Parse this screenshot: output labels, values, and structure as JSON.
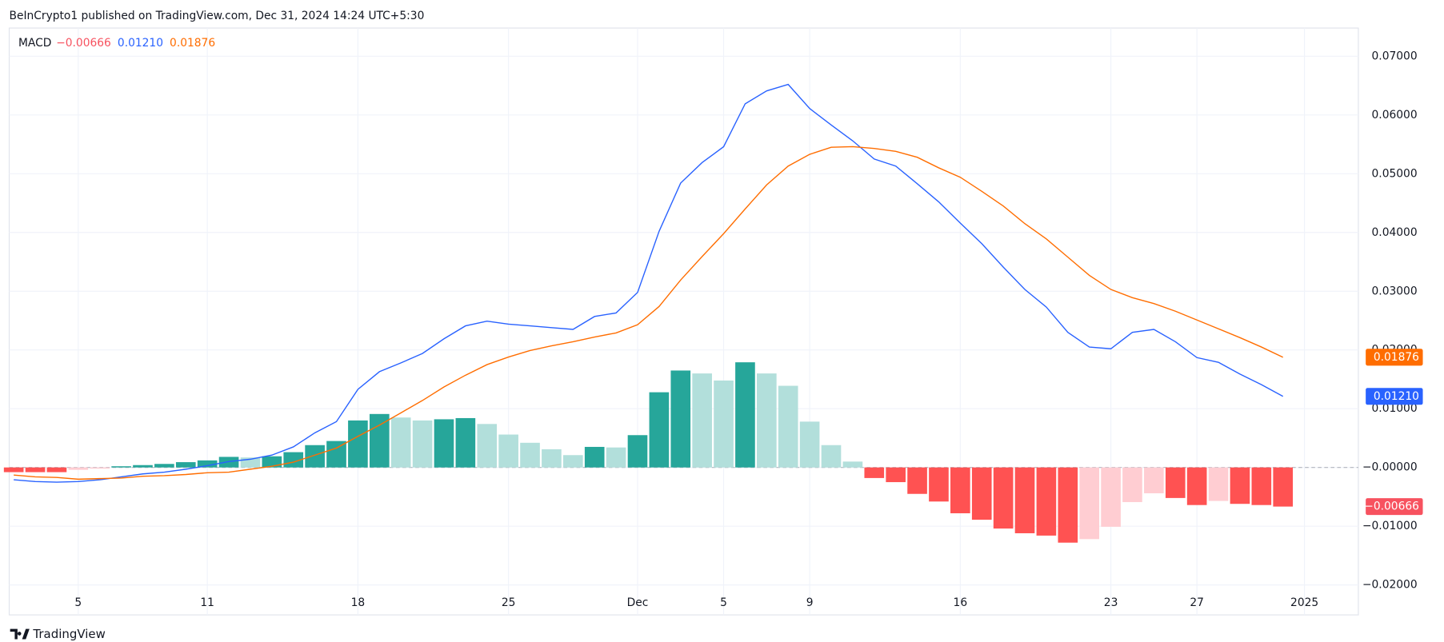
{
  "header": "BeInCrypto1 published on TradingView.com, Dec 31, 2024 14:24 UTC+5:30",
  "footer_brand": "TradingView",
  "chart_data": {
    "type": "macd",
    "indicator": "MACD",
    "categories": [
      null,
      null,
      null,
      "5",
      null,
      null,
      null,
      null,
      null,
      "11",
      null,
      null,
      null,
      null,
      null,
      null,
      "18",
      null,
      null,
      null,
      null,
      null,
      null,
      "25",
      null,
      null,
      null,
      null,
      null,
      "Dec",
      null,
      null,
      null,
      "5",
      null,
      null,
      null,
      "9",
      null,
      null,
      null,
      null,
      null,
      null,
      "16",
      null,
      null,
      null,
      null,
      null,
      null,
      "23",
      null,
      null,
      null,
      "27",
      null,
      null,
      null,
      null,
      "2025"
    ],
    "ylim": [
      -0.0251,
      0.0748
    ],
    "yticks": [
      {
        "value": 0.07,
        "label": "0.07000"
      },
      {
        "value": 0.06,
        "label": "0.06000"
      },
      {
        "value": 0.05,
        "label": "0.05000"
      },
      {
        "value": 0.04,
        "label": "0.04000"
      },
      {
        "value": 0.03,
        "label": "0.03000"
      },
      {
        "value": 0.02,
        "label": "0.02000"
      },
      {
        "value": 0.01,
        "label": "0.01000"
      },
      {
        "value": 0,
        "label": "−0.00000"
      },
      {
        "value": -0.01,
        "label": "−0.01000"
      },
      {
        "value": -0.02,
        "label": "−0.02000"
      }
    ],
    "grid": true,
    "series": [
      {
        "kind": "histogram",
        "color": "#f7525f",
        "last_value": {
          "value": -0.00666,
          "label": "−0.00666"
        },
        "values": [
          -0.0008,
          -0.0008,
          -0.0008,
          -0.0004,
          -0.0002,
          0.0002,
          0.0004,
          0.0006,
          0.0009,
          0.0012,
          0.0018,
          0.0017,
          0.0019,
          0.0026,
          0.0038,
          0.0045,
          0.008,
          0.0091,
          0.0085,
          0.008,
          0.0082,
          0.0084,
          0.0074,
          0.0056,
          0.0042,
          0.0031,
          0.0021,
          0.0035,
          0.0034,
          0.0055,
          0.0128,
          0.0165,
          0.016,
          0.0148,
          0.0179,
          0.016,
          0.0139,
          0.0078,
          0.0038,
          0.001,
          -0.0018,
          -0.0025,
          -0.0045,
          -0.0058,
          -0.0078,
          -0.0089,
          -0.0104,
          -0.0112,
          -0.0116,
          -0.0128,
          -0.0122,
          -0.0101,
          -0.0059,
          -0.0044,
          -0.0052,
          -0.0064,
          -0.0057,
          -0.0062,
          -0.0064,
          -0.00666,
          null
        ],
        "colors": [
          "#ff5252",
          "#ff5252",
          "#ff5252",
          "#ffcdd2",
          "#ffcdd2",
          "#26a69a",
          "#26a69a",
          "#26a69a",
          "#26a69a",
          "#26a69a",
          "#26a69a",
          "#b2dfdb",
          "#26a69a",
          "#26a69a",
          "#26a69a",
          "#26a69a",
          "#26a69a",
          "#26a69a",
          "#b2dfdb",
          "#b2dfdb",
          "#26a69a",
          "#26a69a",
          "#b2dfdb",
          "#b2dfdb",
          "#b2dfdb",
          "#b2dfdb",
          "#b2dfdb",
          "#26a69a",
          "#b2dfdb",
          "#26a69a",
          "#26a69a",
          "#26a69a",
          "#b2dfdb",
          "#b2dfdb",
          "#26a69a",
          "#b2dfdb",
          "#b2dfdb",
          "#b2dfdb",
          "#b2dfdb",
          "#b2dfdb",
          "#ff5252",
          "#ff5252",
          "#ff5252",
          "#ff5252",
          "#ff5252",
          "#ff5252",
          "#ff5252",
          "#ff5252",
          "#ff5252",
          "#ff5252",
          "#ffcdd2",
          "#ffcdd2",
          "#ffcdd2",
          "#ffcdd2",
          "#ff5252",
          "#ff5252",
          "#ffcdd2",
          "#ff5252",
          "#ff5252",
          "#ff5252",
          null
        ]
      },
      {
        "kind": "line",
        "color": "#2962ff",
        "last_value": {
          "value": 0.0121,
          "label": "0.01210"
        },
        "values": [
          -0.0021,
          -0.0024,
          -0.0025,
          -0.0024,
          -0.0021,
          -0.0016,
          -0.0011,
          -0.0008,
          -0.0003,
          0.0003,
          0.001,
          0.0014,
          0.0021,
          0.0035,
          0.0059,
          0.0078,
          0.0133,
          0.0163,
          0.0178,
          0.0194,
          0.0219,
          0.0241,
          0.0249,
          0.0244,
          0.0241,
          0.0238,
          0.0235,
          0.0257,
          0.0263,
          0.0298,
          0.0402,
          0.0484,
          0.0519,
          0.0546,
          0.0619,
          0.0641,
          0.0652,
          0.0611,
          0.0583,
          0.0556,
          0.0525,
          0.0513,
          0.0483,
          0.0452,
          0.0416,
          0.0381,
          0.0341,
          0.0303,
          0.0273,
          0.023,
          0.0205,
          0.0202,
          0.023,
          0.0235,
          0.0214,
          0.0187,
          0.0179,
          0.0159,
          0.0141,
          0.0121,
          null
        ]
      },
      {
        "kind": "line",
        "color": "#ff6d00",
        "last_value": {
          "value": 0.01876,
          "label": "0.01876"
        },
        "values": [
          -0.0013,
          -0.0016,
          -0.0017,
          -0.002,
          -0.0019,
          -0.0018,
          -0.0015,
          -0.0014,
          -0.0012,
          -0.0009,
          -0.0008,
          -0.0003,
          0.0002,
          0.0009,
          0.0021,
          0.0033,
          0.0053,
          0.0072,
          0.0093,
          0.0114,
          0.0137,
          0.0157,
          0.0175,
          0.0188,
          0.0199,
          0.0207,
          0.0214,
          0.0222,
          0.0229,
          0.0243,
          0.0274,
          0.0319,
          0.0359,
          0.0398,
          0.044,
          0.0481,
          0.0513,
          0.0533,
          0.0545,
          0.0546,
          0.0543,
          0.0538,
          0.0528,
          0.051,
          0.0494,
          0.047,
          0.0445,
          0.0415,
          0.0389,
          0.0358,
          0.0327,
          0.0303,
          0.0289,
          0.0279,
          0.0266,
          0.0251,
          0.0236,
          0.0221,
          0.0205,
          0.01876,
          null
        ]
      }
    ]
  }
}
